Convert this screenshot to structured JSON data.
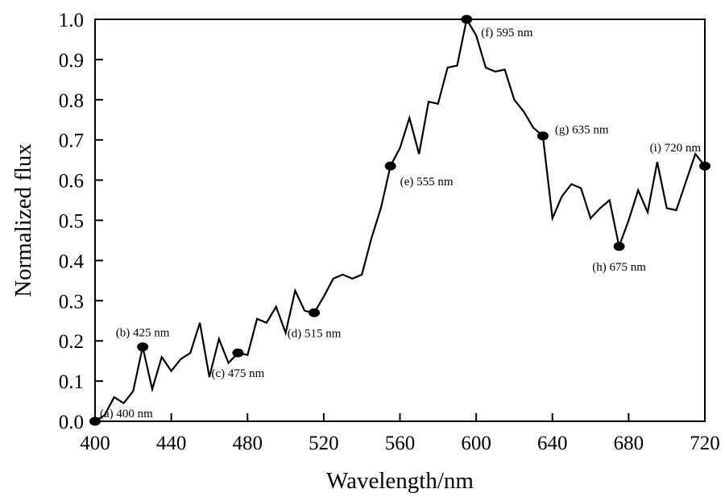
{
  "chart_data": {
    "type": "line",
    "xlabel": "Wavelength/nm",
    "ylabel": "Normalized flux",
    "xlim": [
      400,
      720
    ],
    "ylim": [
      0.0,
      1.0
    ],
    "xticks": [
      400,
      440,
      480,
      520,
      560,
      600,
      640,
      680,
      720
    ],
    "xtick_labels": [
      "400",
      "440",
      "480",
      "520",
      "560",
      "600",
      "640",
      "680",
      "720"
    ],
    "yticks": [
      0.0,
      0.1,
      0.2,
      0.3,
      0.4,
      0.5,
      0.6,
      0.7,
      0.8,
      0.9,
      1.0
    ],
    "ytick_labels": [
      "0.0",
      "0.1",
      "0.2",
      "0.3",
      "0.4",
      "0.5",
      "0.6",
      "0.7",
      "0.8",
      "0.9",
      "1.0"
    ],
    "grid": false,
    "series": [
      {
        "line_color": "#000000",
        "x": [
          400,
          405,
          410,
          415,
          420,
          425,
          430,
          435,
          440,
          445,
          450,
          455,
          460,
          465,
          470,
          475,
          480,
          485,
          490,
          495,
          500,
          505,
          510,
          515,
          520,
          525,
          530,
          535,
          540,
          545,
          550,
          555,
          560,
          565,
          570,
          575,
          580,
          585,
          590,
          595,
          600,
          605,
          610,
          615,
          620,
          625,
          630,
          635,
          640,
          645,
          650,
          655,
          660,
          665,
          670,
          675,
          680,
          685,
          690,
          695,
          700,
          705,
          710,
          715,
          720
        ],
        "y": [
          0.0,
          0.015,
          0.06,
          0.045,
          0.075,
          0.185,
          0.08,
          0.16,
          0.125,
          0.155,
          0.17,
          0.245,
          0.11,
          0.205,
          0.145,
          0.17,
          0.165,
          0.255,
          0.245,
          0.285,
          0.22,
          0.325,
          0.275,
          0.27,
          0.31,
          0.355,
          0.365,
          0.355,
          0.365,
          0.455,
          0.53,
          0.635,
          0.68,
          0.755,
          0.665,
          0.795,
          0.79,
          0.88,
          0.885,
          1.0,
          0.96,
          0.88,
          0.87,
          0.875,
          0.8,
          0.77,
          0.73,
          0.71,
          0.505,
          0.56,
          0.59,
          0.58,
          0.505,
          0.53,
          0.55,
          0.435,
          0.5,
          0.575,
          0.52,
          0.645,
          0.53,
          0.525,
          0.595,
          0.665,
          0.635
        ]
      }
    ],
    "markers": [
      {
        "x": 400,
        "y": 0.0,
        "label": "(a) 400 nm",
        "pos": "right"
      },
      {
        "x": 425,
        "y": 0.185,
        "label": "(b) 425 nm",
        "pos": "above"
      },
      {
        "x": 475,
        "y": 0.17,
        "label": "(c) 475 nm",
        "pos": "below"
      },
      {
        "x": 515,
        "y": 0.27,
        "label": "(d) 515 nm",
        "pos": "below"
      },
      {
        "x": 555,
        "y": 0.635,
        "label": "(e) 555 nm",
        "pos": "below-right"
      },
      {
        "x": 595,
        "y": 1.0,
        "label": "(f) 595 nm",
        "pos": "right-below"
      },
      {
        "x": 635,
        "y": 0.71,
        "label": "(g) 635 nm",
        "pos": "right-above"
      },
      {
        "x": 675,
        "y": 0.435,
        "label": "(h) 675 nm",
        "pos": "below"
      },
      {
        "x": 720,
        "y": 0.635,
        "label": "(i) 720 nm",
        "pos": "above-left"
      }
    ]
  }
}
